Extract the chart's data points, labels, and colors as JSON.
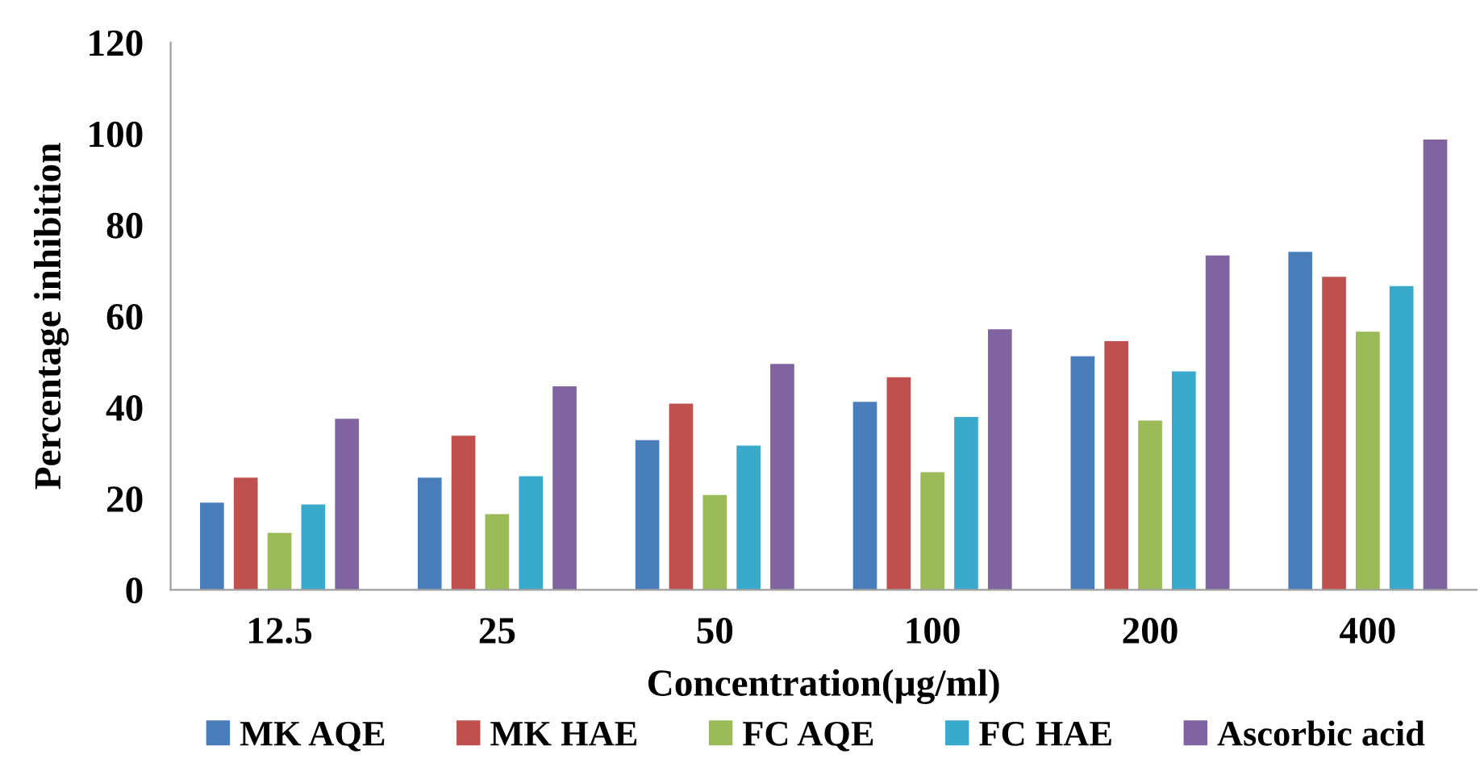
{
  "chart_data": {
    "type": "bar",
    "xlabel": "Concentration(µg/ml)",
    "ylabel": "Percentage inhibition",
    "categories": [
      "12.5",
      "25",
      "50",
      "100",
      "200",
      "400"
    ],
    "series": [
      {
        "name": "MK AQE",
        "color": "#4a7ebb",
        "values": [
          19.1,
          24.6,
          32.8,
          41.2,
          51.2,
          74.1
        ]
      },
      {
        "name": "MK HAE",
        "color": "#c0504d",
        "values": [
          24.6,
          33.8,
          40.8,
          46.6,
          54.5,
          68.6
        ]
      },
      {
        "name": "FC AQE",
        "color": "#9bbb59",
        "values": [
          12.5,
          16.6,
          20.8,
          25.8,
          37.1,
          56.6
        ]
      },
      {
        "name": "FC HAE",
        "color": "#3aaacc",
        "values": [
          18.7,
          24.9,
          31.6,
          37.9,
          47.9,
          66.6
        ]
      },
      {
        "name": "Ascorbic acid",
        "color": "#8064a2",
        "values": [
          37.5,
          44.6,
          49.5,
          57.1,
          73.3,
          98.7
        ]
      }
    ],
    "ylim": [
      0,
      120
    ],
    "yticks": [
      0,
      20,
      40,
      60,
      80,
      100,
      120
    ],
    "grid": false,
    "legend": "bottom"
  }
}
